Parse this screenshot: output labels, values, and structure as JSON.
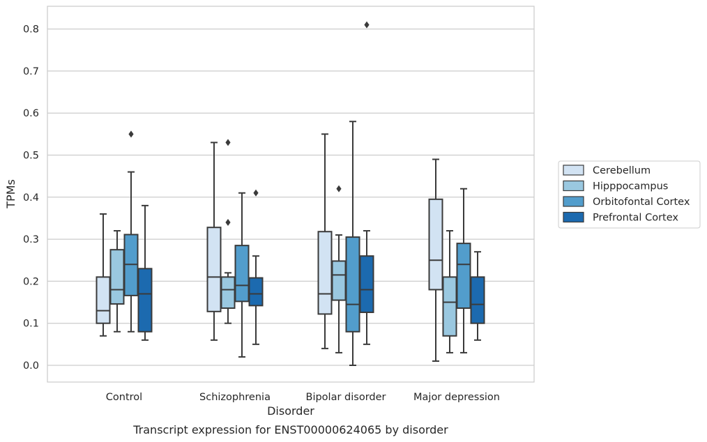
{
  "chart_data": {
    "type": "boxplot",
    "caption": "Transcript expression for ENST00000624065 by disorder",
    "xlabel": "Disorder",
    "ylabel": "TPMs",
    "ylim": [
      -0.04,
      0.85
    ],
    "yticks": [
      "0.0",
      "0.1",
      "0.2",
      "0.3",
      "0.4",
      "0.5",
      "0.6",
      "0.7",
      "0.8"
    ],
    "grid": true,
    "legend_placement": "right",
    "categories": [
      "Control",
      "Schizophrenia",
      "Bipolar disorder",
      "Major depression"
    ],
    "series": [
      {
        "name": "Cerebellum",
        "color": "#d2e3f3",
        "boxes": [
          {
            "whislo": 0.07,
            "q1": 0.1,
            "med": 0.13,
            "q3": 0.21,
            "whishi": 0.36,
            "fliers": []
          },
          {
            "whislo": 0.06,
            "q1": 0.128,
            "med": 0.21,
            "q3": 0.328,
            "whishi": 0.53,
            "fliers": []
          },
          {
            "whislo": 0.04,
            "q1": 0.122,
            "med": 0.17,
            "q3": 0.318,
            "whishi": 0.55,
            "fliers": []
          },
          {
            "whislo": 0.01,
            "q1": 0.18,
            "med": 0.25,
            "q3": 0.395,
            "whishi": 0.49,
            "fliers": []
          }
        ]
      },
      {
        "name": "Hipppocampus",
        "color": "#9ac8e0",
        "boxes": [
          {
            "whislo": 0.08,
            "q1": 0.146,
            "med": 0.18,
            "q3": 0.275,
            "whishi": 0.32,
            "fliers": []
          },
          {
            "whislo": 0.1,
            "q1": 0.136,
            "med": 0.18,
            "q3": 0.21,
            "whishi": 0.22,
            "fliers": [
              0.34,
              0.53
            ]
          },
          {
            "whislo": 0.03,
            "q1": 0.155,
            "med": 0.215,
            "q3": 0.248,
            "whishi": 0.31,
            "fliers": [
              0.42
            ]
          },
          {
            "whislo": 0.03,
            "q1": 0.07,
            "med": 0.15,
            "q3": 0.21,
            "whishi": 0.32,
            "fliers": []
          }
        ]
      },
      {
        "name": "Orbitofontal Cortex",
        "color": "#529dcc",
        "boxes": [
          {
            "whislo": 0.08,
            "q1": 0.166,
            "med": 0.24,
            "q3": 0.311,
            "whishi": 0.46,
            "fliers": [
              0.55
            ]
          },
          {
            "whislo": 0.02,
            "q1": 0.152,
            "med": 0.19,
            "q3": 0.285,
            "whishi": 0.41,
            "fliers": []
          },
          {
            "whislo": 0.0,
            "q1": 0.08,
            "med": 0.145,
            "q3": 0.305,
            "whishi": 0.58,
            "fliers": []
          },
          {
            "whislo": 0.03,
            "q1": 0.136,
            "med": 0.24,
            "q3": 0.29,
            "whishi": 0.42,
            "fliers": []
          }
        ]
      },
      {
        "name": "Prefrontal Cortex",
        "color": "#1c6aaf",
        "boxes": [
          {
            "whislo": 0.06,
            "q1": 0.08,
            "med": 0.17,
            "q3": 0.23,
            "whishi": 0.38,
            "fliers": []
          },
          {
            "whislo": 0.05,
            "q1": 0.142,
            "med": 0.17,
            "q3": 0.208,
            "whishi": 0.26,
            "fliers": [
              0.41
            ]
          },
          {
            "whislo": 0.05,
            "q1": 0.126,
            "med": 0.18,
            "q3": 0.26,
            "whishi": 0.32,
            "fliers": [
              0.81
            ]
          },
          {
            "whislo": 0.06,
            "q1": 0.1,
            "med": 0.145,
            "q3": 0.21,
            "whishi": 0.27,
            "fliers": []
          }
        ]
      }
    ]
  }
}
